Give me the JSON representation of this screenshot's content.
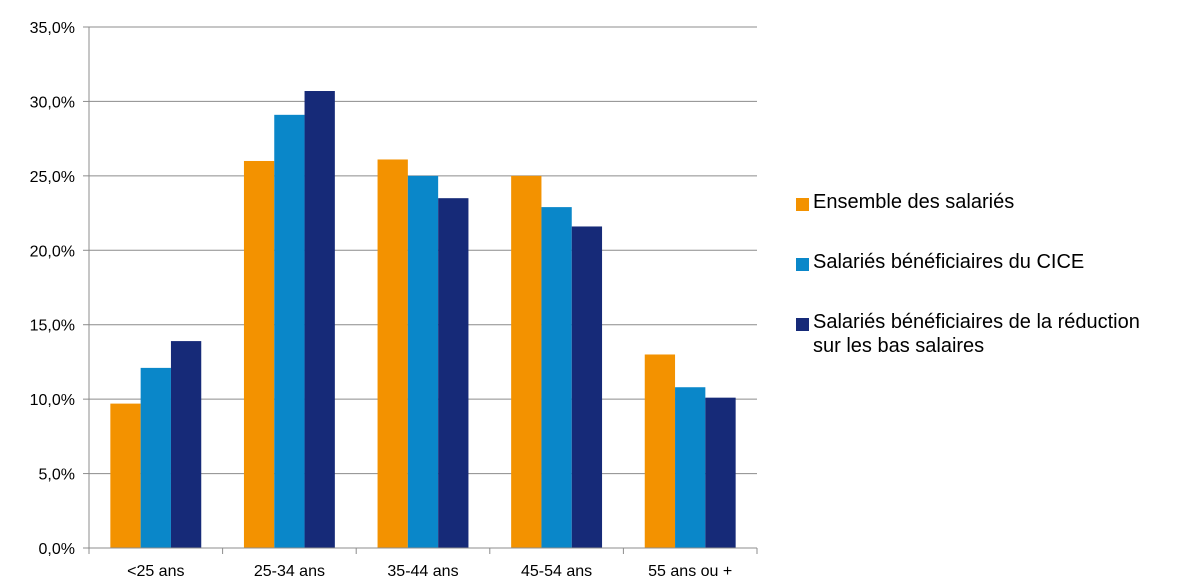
{
  "chart_data": {
    "type": "bar",
    "categories": [
      "<25 ans",
      "25-34 ans",
      "35-44 ans",
      "45-54 ans",
      "55 ans ou +"
    ],
    "series": [
      {
        "name": "Ensemble des salariés",
        "color": "#f39200",
        "values": [
          9.7,
          26.0,
          26.1,
          25.0,
          13.0
        ]
      },
      {
        "name": "Salariés bénéficiaires du CICE",
        "color": "#0a87c9",
        "values": [
          12.1,
          29.1,
          25.0,
          22.9,
          10.8
        ]
      },
      {
        "name": "Salariés bénéficiaires de la réduction sur les bas salaires",
        "color": "#162a78",
        "values": [
          13.9,
          30.7,
          23.5,
          21.6,
          10.1
        ]
      }
    ],
    "y_ticks": [
      "0,0%",
      "5,0%",
      "10,0%",
      "15,0%",
      "20,0%",
      "25,0%",
      "30,0%",
      "35,0%"
    ],
    "ylim": [
      0,
      35
    ],
    "grid": true,
    "legend_position": "right"
  }
}
